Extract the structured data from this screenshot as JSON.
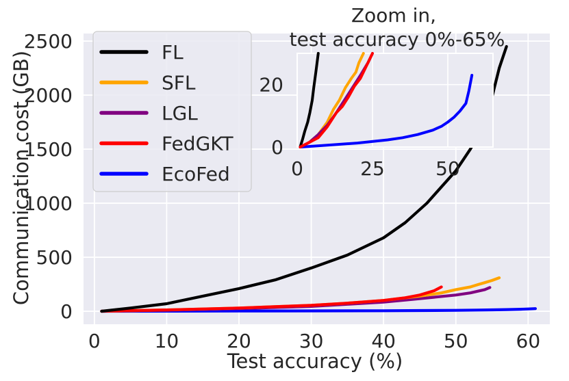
{
  "chart_data": {
    "type": "line",
    "title": "",
    "xlabel": "Test accuracy (%)",
    "ylabel": "Communication cost (GB)",
    "xlim": [
      -1.5,
      63
    ],
    "ylim": [
      -120,
      2570
    ],
    "xticks": [
      "0",
      "10",
      "20",
      "30",
      "40",
      "50",
      "60"
    ],
    "yticks": [
      "0",
      "500",
      "1000",
      "1500",
      "2000",
      "2500"
    ],
    "legend_position": "top-left",
    "series": [
      {
        "name": "FL",
        "color": "#000000",
        "x": [
          1,
          5,
          10,
          15,
          20,
          25,
          30,
          35,
          40,
          43,
          46,
          48,
          50,
          51,
          52,
          53,
          54,
          55,
          56,
          57
        ],
        "y": [
          0,
          30,
          70,
          140,
          210,
          290,
          400,
          520,
          680,
          820,
          1000,
          1150,
          1300,
          1400,
          1500,
          1620,
          1780,
          1980,
          2250,
          2450
        ]
      },
      {
        "name": "SFL",
        "color": "#FFA500",
        "x": [
          1,
          10,
          20,
          30,
          35,
          40,
          45,
          48,
          50,
          52,
          53,
          54,
          55,
          56
        ],
        "y": [
          0,
          12,
          30,
          55,
          75,
          100,
          140,
          170,
          200,
          225,
          245,
          265,
          285,
          310
        ]
      },
      {
        "name": "LGL",
        "color": "#800080",
        "x": [
          1,
          10,
          20,
          30,
          35,
          40,
          44,
          47,
          50,
          52,
          53,
          54,
          54.7
        ],
        "y": [
          0,
          10,
          25,
          45,
          65,
          85,
          110,
          130,
          150,
          170,
          185,
          200,
          220
        ]
      },
      {
        "name": "FedGKT",
        "color": "#FF0000",
        "x": [
          1,
          10,
          20,
          30,
          35,
          40,
          43,
          45,
          46,
          47,
          48
        ],
        "y": [
          0,
          12,
          30,
          55,
          75,
          100,
          125,
          150,
          170,
          190,
          225
        ]
      },
      {
        "name": "EcoFed",
        "color": "#0000FF",
        "x": [
          1,
          10,
          20,
          30,
          40,
          45,
          50,
          53,
          55,
          57,
          59,
          60,
          61
        ],
        "y": [
          0,
          1,
          2,
          3.5,
          5,
          6.5,
          8.5,
          11,
          13,
          15.5,
          18.5,
          21,
          24.5
        ]
      }
    ],
    "inset": {
      "title_line1": "Zoom in,",
      "title_line2": "test accuracy 0%-65%",
      "xlim": [
        0,
        65
      ],
      "ylim": [
        0,
        30
      ],
      "xticks": [
        "0",
        "25",
        "50"
      ],
      "yticks": [
        "0",
        "20"
      ],
      "series": [
        {
          "name": "FL",
          "color": "#000000",
          "x": [
            1,
            1.8,
            2.5,
            3.5,
            4.2,
            5,
            5.5,
            6.2,
            7
          ],
          "y": [
            0,
            2.5,
            5,
            8,
            11,
            15,
            19,
            24,
            30
          ]
        },
        {
          "name": "SFL",
          "color": "#FFA500",
          "x": [
            1,
            4,
            7,
            10,
            12,
            14,
            16,
            18,
            19.5,
            20.5,
            22
          ],
          "y": [
            0,
            1.5,
            4,
            8,
            12,
            15,
            19,
            22,
            24,
            27,
            30
          ]
        },
        {
          "name": "LGL",
          "color": "#800080",
          "x": [
            1,
            4,
            7,
            10,
            13,
            15,
            17,
            19,
            21,
            23.5,
            25
          ],
          "y": [
            0,
            1.5,
            4,
            7,
            11,
            14,
            17,
            20,
            23,
            27,
            30
          ]
        },
        {
          "name": "FedGKT",
          "color": "#FF0000",
          "x": [
            1,
            4,
            7,
            10,
            13,
            15,
            17,
            19,
            21,
            23,
            25
          ],
          "y": [
            0,
            1.5,
            3,
            6.5,
            11,
            13,
            16,
            19.5,
            22,
            26,
            30
          ]
        },
        {
          "name": "EcoFed",
          "color": "#0000FF",
          "x": [
            1,
            10,
            20,
            30,
            35,
            40,
            45,
            48,
            50,
            52,
            54,
            56,
            57,
            58
          ],
          "y": [
            0,
            0.6,
            1.3,
            2.3,
            3,
            4,
            5.4,
            6.7,
            8,
            9.5,
            11.5,
            14,
            18,
            23
          ]
        }
      ]
    }
  }
}
